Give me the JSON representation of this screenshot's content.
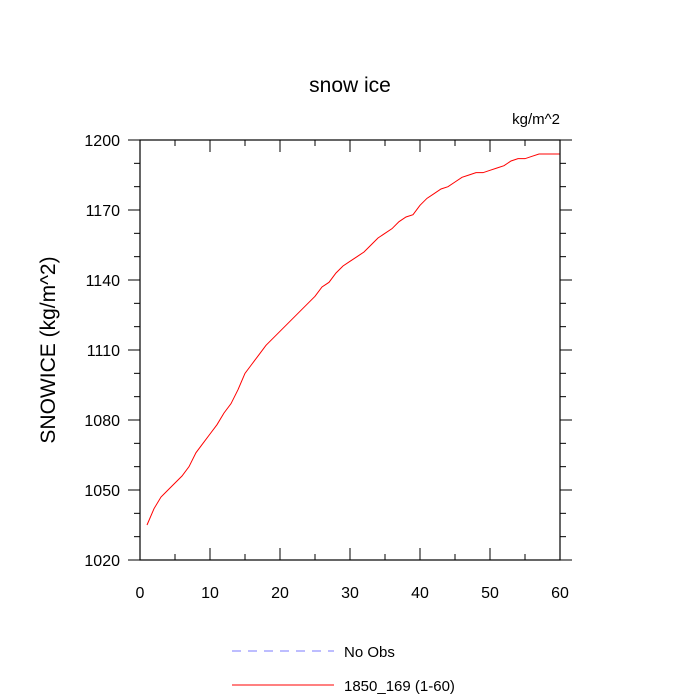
{
  "chart_data": {
    "type": "line",
    "title": "snow ice",
    "units_label": "kg/m^2",
    "xlabel": "",
    "ylabel": "SNOWICE  (kg/m^2)",
    "xlim": [
      0,
      60
    ],
    "ylim": [
      1020,
      1200
    ],
    "x_ticks": [
      0,
      10,
      20,
      30,
      40,
      50,
      60
    ],
    "y_ticks": [
      1020,
      1050,
      1080,
      1110,
      1140,
      1170,
      1200
    ],
    "grid": false,
    "legend_position": "bottom-center",
    "series": [
      {
        "name": "No Obs",
        "color": "#7b7bff",
        "dash": true,
        "x": [],
        "y": []
      },
      {
        "name": "1850_169 (1-60)",
        "color": "#ff0000",
        "dash": false,
        "x": [
          1,
          2,
          3,
          4,
          5,
          6,
          7,
          8,
          9,
          10,
          11,
          12,
          13,
          14,
          15,
          16,
          17,
          18,
          19,
          20,
          21,
          22,
          23,
          24,
          25,
          26,
          27,
          28,
          29,
          30,
          31,
          32,
          33,
          34,
          35,
          36,
          37,
          38,
          39,
          40,
          41,
          42,
          43,
          44,
          45,
          46,
          47,
          48,
          49,
          50,
          51,
          52,
          53,
          54,
          55,
          56,
          57,
          58,
          59,
          60
        ],
        "y": [
          1035,
          1042,
          1047,
          1050,
          1053,
          1056,
          1060,
          1066,
          1070,
          1074,
          1078,
          1083,
          1087,
          1093,
          1100,
          1104,
          1108,
          1112,
          1115,
          1118,
          1121,
          1124,
          1127,
          1130,
          1133,
          1137,
          1139,
          1143,
          1146,
          1148,
          1150,
          1152,
          1155,
          1158,
          1160,
          1162,
          1165,
          1167,
          1168,
          1172,
          1175,
          1177,
          1179,
          1180,
          1182,
          1184,
          1185,
          1186,
          1186,
          1187,
          1188,
          1189,
          1191,
          1192,
          1192,
          1193,
          1194,
          1194,
          1194,
          1194
        ]
      }
    ]
  }
}
